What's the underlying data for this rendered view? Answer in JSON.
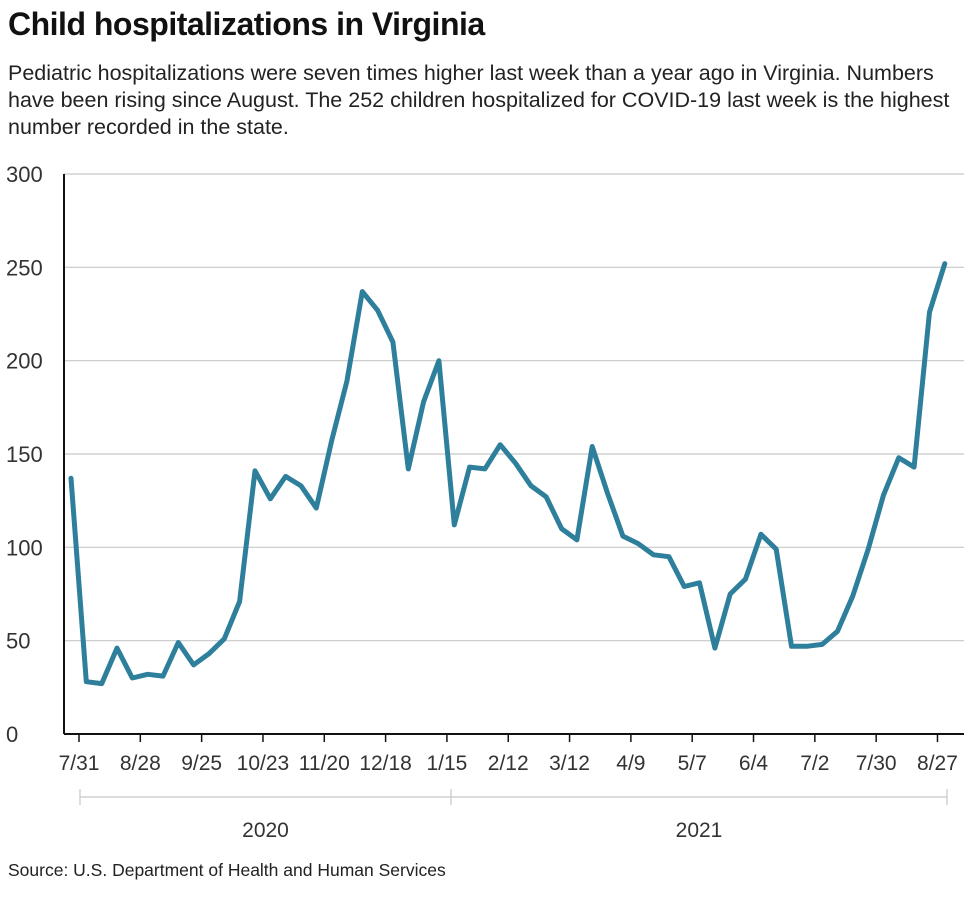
{
  "title": "Child hospitalizations in Virginia",
  "subtitle": "Pediatric hospitalizations were seven times higher last week than a year ago in Virginia. Numbers have been rising since August. The 252 children hospitalized for COVID-19 last week is the highest number recorded in the state.",
  "source": "Source: U.S. Department of Health and Human Services",
  "colors": {
    "line": "#2e7f9b",
    "grid": "#c8c8c8",
    "axis": "#111111"
  },
  "chart_data": {
    "type": "line",
    "title": "Child hospitalizations in Virginia",
    "xlabel": "",
    "ylabel": "",
    "ylim": [
      0,
      300
    ],
    "yticks": [
      "0",
      "50",
      "100",
      "150",
      "200",
      "250",
      "300"
    ],
    "grid": "horizontal",
    "x_tick_labels": [
      "7/31",
      "8/28",
      "9/25",
      "10/23",
      "11/20",
      "12/18",
      "1/15",
      "2/12",
      "3/12",
      "4/9",
      "5/7",
      "6/4",
      "7/2",
      "7/30",
      "8/27"
    ],
    "year_labels": [
      "2020",
      "2021"
    ],
    "x": [
      "2020-07-31",
      "2020-08-07",
      "2020-08-14",
      "2020-08-21",
      "2020-08-28",
      "2020-09-04",
      "2020-09-11",
      "2020-09-18",
      "2020-09-25",
      "2020-10-02",
      "2020-10-09",
      "2020-10-16",
      "2020-10-23",
      "2020-10-30",
      "2020-11-06",
      "2020-11-13",
      "2020-11-20",
      "2020-11-27",
      "2020-12-04",
      "2020-12-11",
      "2020-12-18",
      "2020-12-25",
      "2021-01-01",
      "2021-01-08",
      "2021-01-15",
      "2021-01-22",
      "2021-01-29",
      "2021-02-05",
      "2021-02-12",
      "2021-02-19",
      "2021-02-26",
      "2021-03-05",
      "2021-03-12",
      "2021-03-19",
      "2021-03-26",
      "2021-04-02",
      "2021-04-09",
      "2021-04-16",
      "2021-04-23",
      "2021-04-30",
      "2021-05-07",
      "2021-05-14",
      "2021-05-21",
      "2021-05-28",
      "2021-06-04",
      "2021-06-11",
      "2021-06-18",
      "2021-06-25",
      "2021-07-02",
      "2021-07-09",
      "2021-07-16",
      "2021-07-23",
      "2021-07-30",
      "2021-08-06",
      "2021-08-13",
      "2021-08-20",
      "2021-08-27",
      "2021-09-03"
    ],
    "series": [
      {
        "values": [
          137,
          28,
          27,
          46,
          30,
          32,
          31,
          49,
          37,
          43,
          51,
          71,
          141,
          126,
          138,
          133,
          121,
          157,
          189,
          237,
          227,
          210,
          142,
          178,
          200,
          112,
          143,
          142,
          155,
          145,
          133,
          127,
          110,
          104,
          154,
          129,
          106,
          102,
          96,
          95,
          79,
          81,
          46,
          75,
          83,
          107,
          99,
          47,
          47,
          48,
          55,
          74,
          99,
          128,
          148,
          143,
          226,
          252
        ]
      }
    ]
  }
}
